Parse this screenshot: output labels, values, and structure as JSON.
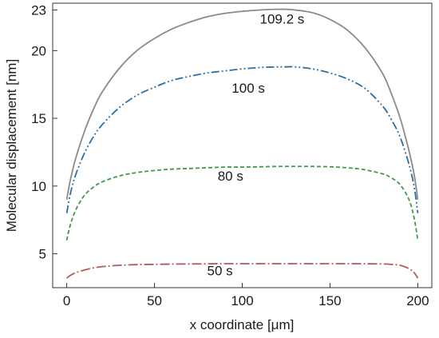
{
  "chart_data": {
    "type": "line",
    "xlabel": "x coordinate [μm]",
    "ylabel": "Molecular displacement [nm]",
    "xlim": [
      -8,
      208
    ],
    "ylim": [
      2.5,
      23.5
    ],
    "xticks": [
      0,
      50,
      100,
      150,
      200
    ],
    "yticks": [
      5,
      10,
      15,
      20,
      23
    ],
    "grid": false,
    "legend": "none",
    "series": [
      {
        "name": "109.2 s",
        "color": "#8a8a8a",
        "dash": "solid",
        "label_at": [
          110,
          22.0
        ],
        "x": [
          0,
          2,
          5,
          10,
          15,
          20,
          30,
          40,
          50,
          60,
          70,
          80,
          90,
          100,
          110,
          120,
          125,
          130,
          140,
          150,
          160,
          170,
          180,
          185,
          190,
          195,
          198,
          200
        ],
        "y": [
          9.0,
          10.4,
          12.0,
          14.0,
          15.6,
          16.9,
          18.7,
          20.0,
          20.9,
          21.6,
          22.1,
          22.5,
          22.75,
          22.9,
          23.0,
          23.05,
          23.05,
          23.0,
          22.8,
          22.3,
          21.5,
          20.2,
          18.3,
          16.8,
          15.0,
          12.6,
          10.8,
          9.0
        ]
      },
      {
        "name": "100 s",
        "color": "#2a6fa8",
        "dash": "10,3,2,3,2,3",
        "label_at": [
          94,
          16.9
        ],
        "x": [
          0,
          2,
          5,
          10,
          15,
          20,
          30,
          40,
          50,
          60,
          70,
          80,
          90,
          100,
          110,
          120,
          125,
          130,
          140,
          150,
          160,
          170,
          180,
          185,
          190,
          195,
          198,
          200
        ],
        "y": [
          8.0,
          9.4,
          10.8,
          12.4,
          13.6,
          14.5,
          15.8,
          16.7,
          17.3,
          17.8,
          18.1,
          18.35,
          18.5,
          18.65,
          18.75,
          18.8,
          18.8,
          18.8,
          18.65,
          18.35,
          17.9,
          17.2,
          15.9,
          14.9,
          13.6,
          11.6,
          9.9,
          8.0
        ]
      },
      {
        "name": "80 s",
        "color": "#3c9a4e",
        "dash": "5,3",
        "label_at": [
          86,
          10.4
        ],
        "x": [
          0,
          2,
          5,
          10,
          15,
          20,
          30,
          40,
          50,
          60,
          70,
          80,
          90,
          100,
          110,
          120,
          130,
          140,
          150,
          160,
          170,
          180,
          185,
          190,
          195,
          198,
          200
        ],
        "y": [
          6.0,
          7.1,
          8.2,
          9.3,
          9.9,
          10.3,
          10.75,
          11.0,
          11.15,
          11.25,
          11.3,
          11.35,
          11.4,
          11.4,
          11.42,
          11.45,
          11.45,
          11.45,
          11.42,
          11.35,
          11.2,
          10.9,
          10.6,
          10.1,
          9.0,
          7.6,
          6.0
        ]
      },
      {
        "name": "50 s",
        "color": "#b05a5a",
        "dash": "12,3,2,3",
        "label_at": [
          80,
          3.4
        ],
        "x": [
          0,
          2,
          5,
          10,
          15,
          20,
          30,
          40,
          50,
          60,
          70,
          80,
          90,
          100,
          110,
          120,
          130,
          140,
          150,
          160,
          170,
          180,
          185,
          190,
          195,
          198,
          200
        ],
        "y": [
          3.2,
          3.4,
          3.6,
          3.8,
          3.95,
          4.05,
          4.15,
          4.2,
          4.22,
          4.24,
          4.25,
          4.26,
          4.27,
          4.27,
          4.27,
          4.27,
          4.27,
          4.27,
          4.27,
          4.27,
          4.26,
          4.25,
          4.22,
          4.15,
          3.9,
          3.6,
          3.2
        ]
      }
    ]
  }
}
